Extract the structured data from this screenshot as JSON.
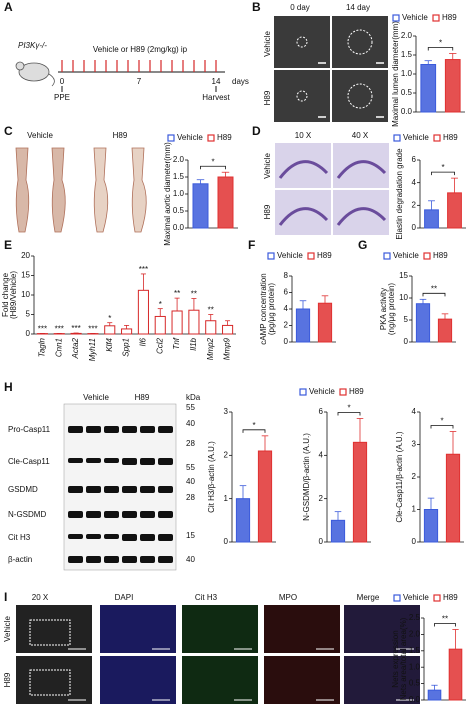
{
  "panel_labels": [
    "A",
    "B",
    "C",
    "D",
    "E",
    "F",
    "G",
    "H",
    "I"
  ],
  "timeline": {
    "mouse_label": "PI3Kγ-/-",
    "treatment": "Vehicle or H89 (2mg/kg) ip",
    "ticks": [
      "0",
      "7",
      "14"
    ],
    "unit": "days",
    "start": "PPE",
    "end": "Harvest"
  },
  "panel_b_images": {
    "columns": [
      "0 day",
      "14 day"
    ],
    "rows": [
      "Vehicle",
      "H89"
    ]
  },
  "panel_c_images": {
    "columns": [
      "Vehicle",
      "H89"
    ]
  },
  "panel_d_images": {
    "columns": [
      "10 X",
      "40 X"
    ],
    "rows": [
      "Vehicle",
      "H89"
    ]
  },
  "blot": {
    "columns": [
      "Vehicle",
      "H89"
    ],
    "unit": "kDa",
    "rows": [
      "Pro-Casp11",
      "Cle-Casp11",
      "GSDMD",
      "N-GSDMD",
      "Cit H3",
      "β-actin"
    ],
    "markers": [
      "55",
      "40",
      "28",
      "55",
      "40",
      "28",
      "15",
      "40"
    ]
  },
  "panel_i_images": {
    "columns": [
      "20 X",
      "DAPI",
      "Cit H3",
      "MPO",
      "Merge"
    ],
    "rows": [
      "Vehicle",
      "H89"
    ]
  },
  "chart_data": [
    {
      "type": "bar",
      "ylabel": "Maximal lumen diameter(mm)",
      "categories": [
        "Vehicle",
        "H89"
      ],
      "legend": true,
      "values": [
        1.25,
        1.38
      ],
      "errors": [
        0.1,
        0.16
      ],
      "colors": [
        "#3b5bdb",
        "#e03131"
      ],
      "ylim": [
        0,
        2
      ],
      "yticks": [
        {
          "value": 0,
          "label": "0.0"
        },
        0.5,
        {
          "value": 1,
          "label": "1.0"
        },
        1.5,
        {
          "value": 2,
          "label": "2.0"
        }
      ],
      "significance": "*"
    },
    {
      "type": "bar",
      "ylabel": "Maximal aortic diameter(mm)",
      "categories": [
        "Vehicle",
        "H89"
      ],
      "legend": true,
      "values": [
        1.3,
        1.5
      ],
      "errors": [
        0.12,
        0.14
      ],
      "colors": [
        "#3b5bdb",
        "#e03131"
      ],
      "ylim": [
        0,
        2
      ],
      "yticks": [
        {
          "value": 0,
          "label": "0.0"
        },
        0.5,
        {
          "value": 1,
          "label": "1.0"
        },
        1.5,
        {
          "value": 2,
          "label": "2.0"
        }
      ],
      "significance": "*"
    },
    {
      "type": "bar",
      "ylabel": "Elastin degradation grade",
      "categories": [
        "Vehicle",
        "H89"
      ],
      "legend": true,
      "values": [
        1.6,
        3.1
      ],
      "errors": [
        0.8,
        1.3
      ],
      "colors": [
        "#3b5bdb",
        "#e03131"
      ],
      "ylim": [
        0,
        6
      ],
      "yticks": [
        0,
        2,
        4,
        6
      ],
      "significance": "*"
    },
    {
      "type": "bar",
      "ylabel": [
        "Fold change",
        "(H89/Vehicle)"
      ],
      "categories": [
        "Tagln",
        "Cnn1",
        "Acta2",
        "Myh11",
        "Klf4",
        "Spp1",
        "Il6",
        "Ccl2",
        "Tnf",
        "Il1b",
        "Mmp2",
        "Mmp9"
      ],
      "values": [
        0.1,
        0.1,
        0.15,
        0.1,
        2.1,
        1.3,
        11.2,
        4.5,
        5.9,
        6.1,
        3.4,
        2.2
      ],
      "errors": [
        0.05,
        0.05,
        0.1,
        0.05,
        0.8,
        0.9,
        4.2,
        2.0,
        3.3,
        3.0,
        1.6,
        1.2
      ],
      "color": "#d62728",
      "fill": "#ffffff",
      "ylim": [
        0,
        20
      ],
      "yticks": [
        0,
        5,
        10,
        15,
        20
      ],
      "significance": [
        "***",
        "***",
        "***",
        "***",
        "*",
        null,
        "***",
        "*",
        "**",
        "**",
        "**",
        null
      ]
    },
    {
      "type": "bar",
      "ylabel": [
        "cAMP concentration",
        "(pg/μg protein)"
      ],
      "categories": [
        "Vehicle",
        "H89"
      ],
      "legend": true,
      "values": [
        4.0,
        4.7
      ],
      "errors": [
        1.0,
        0.9
      ],
      "colors": [
        "#3b5bdb",
        "#e03131"
      ],
      "ylim": [
        0,
        8
      ],
      "yticks": [
        0,
        2,
        4,
        6,
        8
      ]
    },
    {
      "type": "bar",
      "ylabel": [
        "PKA activity",
        "(ng/μg protein)"
      ],
      "categories": [
        "Vehicle",
        "H89"
      ],
      "legend": true,
      "values": [
        8.7,
        5.2
      ],
      "errors": [
        1.0,
        1.2
      ],
      "colors": [
        "#3b5bdb",
        "#e03131"
      ],
      "ylim": [
        0,
        15
      ],
      "yticks": [
        0,
        5,
        10,
        15
      ],
      "significance": "**"
    },
    {
      "type": "bar",
      "ylabel": "Cit H3/β-actin (A.U.)",
      "categories": [
        "Vehicle",
        "H89"
      ],
      "legend": true,
      "values": [
        1.0,
        2.1
      ],
      "errors": [
        0.3,
        0.35
      ],
      "colors": [
        "#3b5bdb",
        "#e03131"
      ],
      "ylim": [
        0,
        3
      ],
      "yticks": [
        0,
        1,
        2,
        3
      ],
      "significance": "*"
    },
    {
      "type": "bar",
      "ylabel": "N-GSDMD/β-actin (A.U.)",
      "values": [
        1.0,
        4.6
      ],
      "errors": [
        0.4,
        1.1
      ],
      "colors": [
        "#3b5bdb",
        "#e03131"
      ],
      "ylim": [
        0,
        6
      ],
      "yticks": [
        0,
        2,
        4,
        6
      ],
      "significance": "*"
    },
    {
      "type": "bar",
      "ylabel": "Cle-Casp11/β-actin (A.U.)",
      "values": [
        1.0,
        2.7
      ],
      "errors": [
        0.35,
        0.7
      ],
      "colors": [
        "#3b5bdb",
        "#e03131"
      ],
      "ylim": [
        0,
        4
      ],
      "yticks": [
        0,
        1,
        2,
        3,
        4
      ],
      "significance": "*"
    },
    {
      "type": "bar",
      "ylabel": [
        "Nets expression",
        "Nets area/total area(%)"
      ],
      "categories": [
        "Vehicle",
        "H89"
      ],
      "legend": true,
      "values": [
        0.3,
        1.55
      ],
      "errors": [
        0.15,
        0.6
      ],
      "colors": [
        "#3b5bdb",
        "#e03131"
      ],
      "ylim": [
        0,
        2.5
      ],
      "yticks": [
        {
          "value": 0,
          "label": "0.0"
        },
        0.5,
        {
          "value": 1,
          "label": "1.0"
        },
        1.5,
        {
          "value": 2,
          "label": "2.0"
        },
        2.5
      ],
      "significance": "**"
    }
  ]
}
